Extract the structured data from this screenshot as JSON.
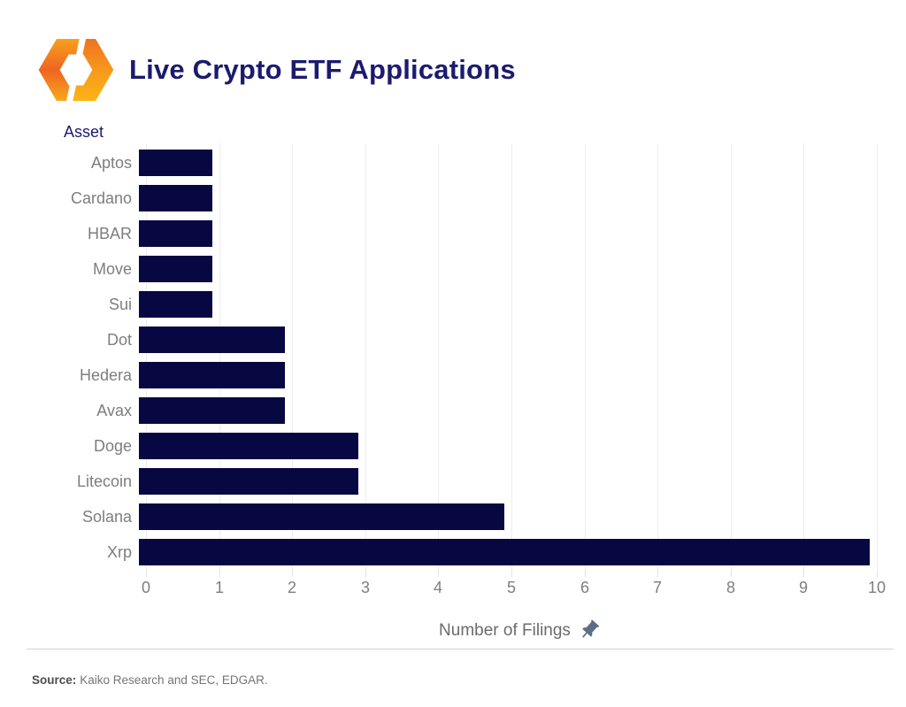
{
  "header": {
    "title": "Live Crypto ETF Applications"
  },
  "chart_data": {
    "type": "bar",
    "orientation": "horizontal",
    "title": "Live Crypto ETF Applications",
    "y_axis_title": "Asset",
    "x_axis_title": "Number of Filings",
    "categories": [
      "Aptos",
      "Cardano",
      "HBAR",
      "Move",
      "Sui",
      "Dot",
      "Hedera",
      "Avax",
      "Doge",
      "Litecoin",
      "Solana",
      "Xrp"
    ],
    "values": [
      1,
      1,
      1,
      1,
      1,
      2,
      2,
      2,
      3,
      3,
      5,
      10
    ],
    "x_ticks": [
      0,
      1,
      2,
      3,
      4,
      5,
      6,
      7,
      8,
      9,
      10
    ],
    "xlim": [
      0,
      10.2
    ],
    "grid": true,
    "legend": "none",
    "bar_color": "#070742",
    "gridline_color": "#ededed"
  },
  "icons": {
    "logo": "kaiko-logo",
    "x_axis_pin": "pushpin-icon"
  },
  "colors": {
    "title_navy": "#1b1b6e",
    "label_gray": "#7e7e7e",
    "axis_title_gray": "#6b6b6b",
    "pin_slate": "#5c6d87",
    "logo_orange": "#f1641f",
    "logo_yellow": "#fcb415"
  },
  "footer": {
    "source_label": "Source:",
    "source_text": "Kaiko Research and SEC, EDGAR."
  }
}
